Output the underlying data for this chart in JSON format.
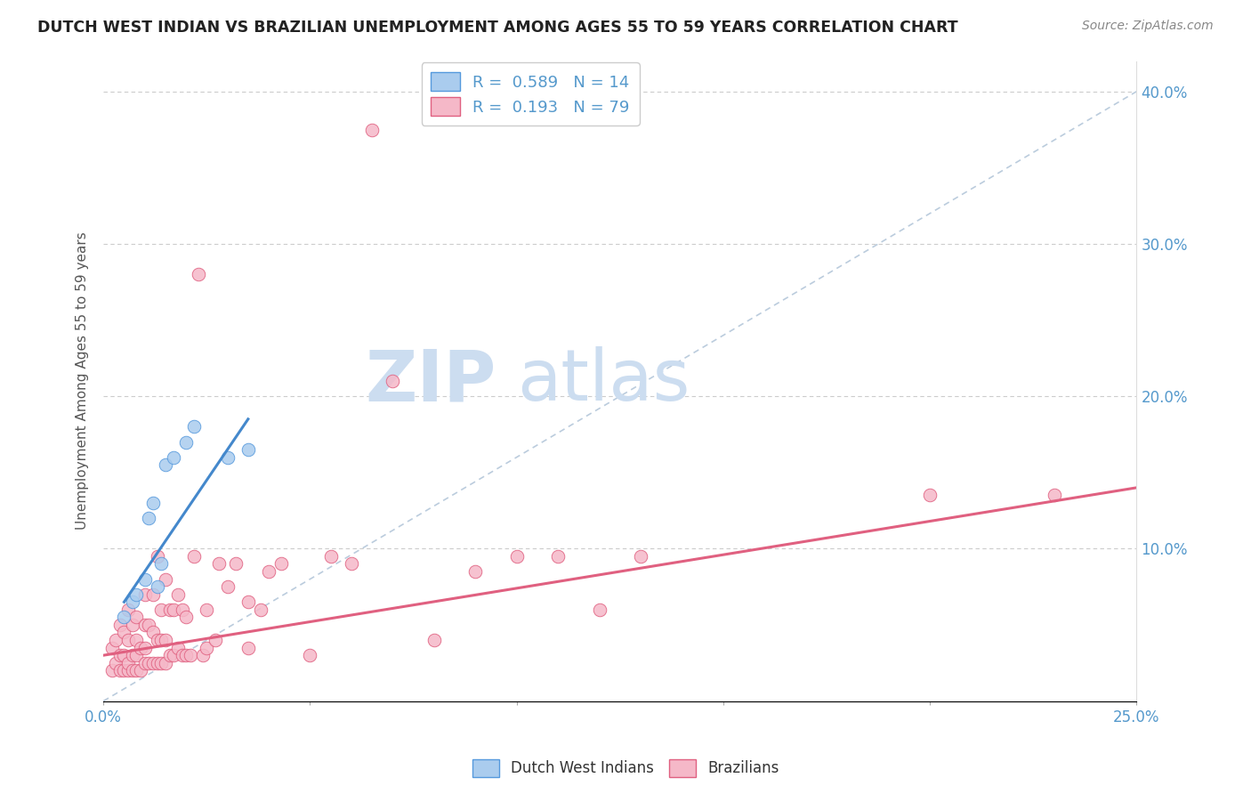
{
  "title": "DUTCH WEST INDIAN VS BRAZILIAN UNEMPLOYMENT AMONG AGES 55 TO 59 YEARS CORRELATION CHART",
  "source": "Source: ZipAtlas.com",
  "ylabel": "Unemployment Among Ages 55 to 59 years",
  "xlim": [
    0.0,
    0.25
  ],
  "ylim": [
    0.0,
    0.42
  ],
  "legend_r1": "0.589",
  "legend_n1": "14",
  "legend_r2": "0.193",
  "legend_n2": "79",
  "color_dwi_fill": "#aaccee",
  "color_dwi_edge": "#5599dd",
  "color_braz_fill": "#f5b8c8",
  "color_braz_edge": "#e06080",
  "color_dwi_line": "#4488cc",
  "color_braz_line": "#e06080",
  "color_diag_line": "#bbccdd",
  "watermark_zip": "ZIP",
  "watermark_atlas": "atlas",
  "watermark_color": "#ccddf0",
  "dwi_x": [
    0.005,
    0.007,
    0.008,
    0.01,
    0.011,
    0.012,
    0.013,
    0.014,
    0.015,
    0.017,
    0.02,
    0.022,
    0.03,
    0.035
  ],
  "dwi_y": [
    0.055,
    0.065,
    0.07,
    0.08,
    0.12,
    0.13,
    0.075,
    0.09,
    0.155,
    0.16,
    0.17,
    0.18,
    0.16,
    0.165
  ],
  "dwi_line_x": [
    0.005,
    0.035
  ],
  "dwi_line_y": [
    0.065,
    0.185
  ],
  "braz_line_x": [
    0.0,
    0.25
  ],
  "braz_line_y": [
    0.03,
    0.14
  ],
  "braz_x": [
    0.002,
    0.002,
    0.003,
    0.003,
    0.004,
    0.004,
    0.004,
    0.005,
    0.005,
    0.005,
    0.006,
    0.006,
    0.006,
    0.006,
    0.007,
    0.007,
    0.007,
    0.008,
    0.008,
    0.008,
    0.008,
    0.009,
    0.009,
    0.01,
    0.01,
    0.01,
    0.01,
    0.011,
    0.011,
    0.012,
    0.012,
    0.012,
    0.013,
    0.013,
    0.013,
    0.014,
    0.014,
    0.014,
    0.015,
    0.015,
    0.015,
    0.016,
    0.016,
    0.017,
    0.017,
    0.018,
    0.018,
    0.019,
    0.019,
    0.02,
    0.02,
    0.021,
    0.022,
    0.023,
    0.024,
    0.025,
    0.025,
    0.027,
    0.028,
    0.03,
    0.032,
    0.035,
    0.035,
    0.038,
    0.04,
    0.043,
    0.05,
    0.055,
    0.06,
    0.065,
    0.07,
    0.08,
    0.09,
    0.1,
    0.11,
    0.12,
    0.13,
    0.2,
    0.23
  ],
  "braz_y": [
    0.02,
    0.035,
    0.025,
    0.04,
    0.02,
    0.03,
    0.05,
    0.02,
    0.03,
    0.045,
    0.02,
    0.025,
    0.04,
    0.06,
    0.02,
    0.03,
    0.05,
    0.02,
    0.03,
    0.04,
    0.055,
    0.02,
    0.035,
    0.025,
    0.035,
    0.05,
    0.07,
    0.025,
    0.05,
    0.025,
    0.045,
    0.07,
    0.025,
    0.04,
    0.095,
    0.025,
    0.04,
    0.06,
    0.025,
    0.04,
    0.08,
    0.03,
    0.06,
    0.03,
    0.06,
    0.035,
    0.07,
    0.03,
    0.06,
    0.03,
    0.055,
    0.03,
    0.095,
    0.28,
    0.03,
    0.035,
    0.06,
    0.04,
    0.09,
    0.075,
    0.09,
    0.035,
    0.065,
    0.06,
    0.085,
    0.09,
    0.03,
    0.095,
    0.09,
    0.375,
    0.21,
    0.04,
    0.085,
    0.095,
    0.095,
    0.06,
    0.095,
    0.135,
    0.135
  ]
}
